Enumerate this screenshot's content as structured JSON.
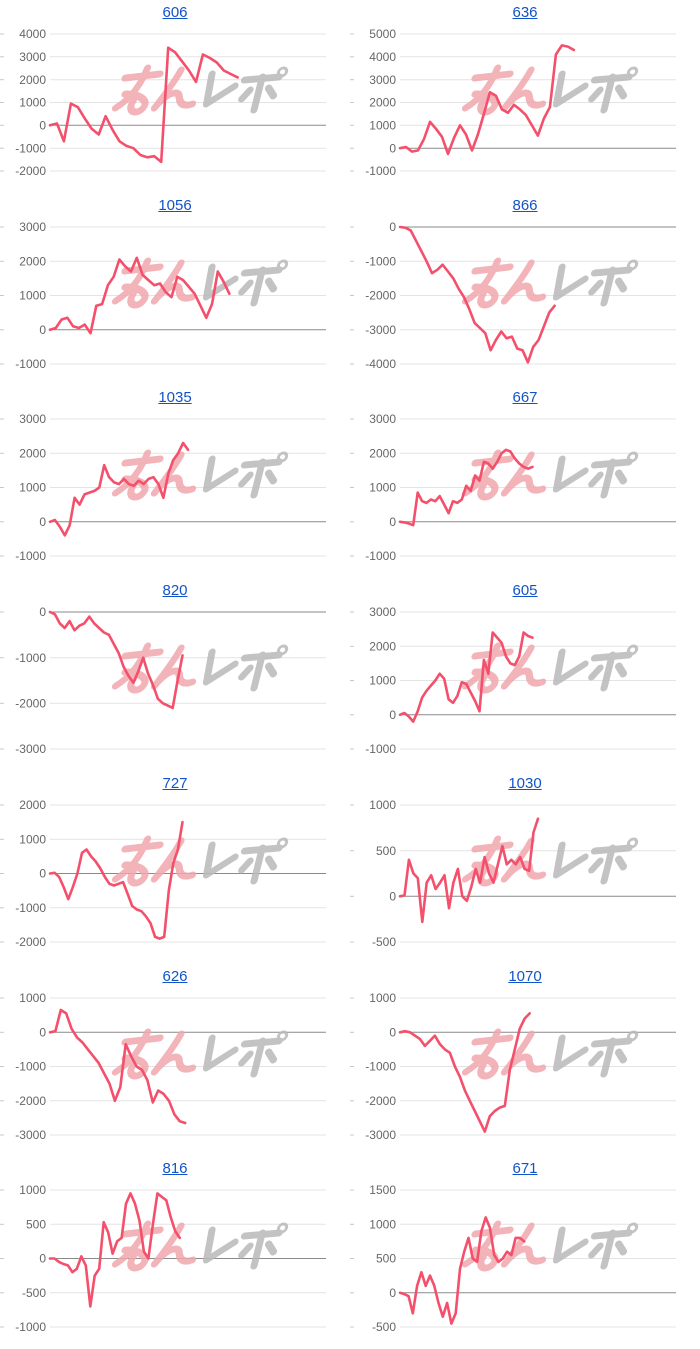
{
  "page": {
    "background": "#ffffff"
  },
  "colors": {
    "line": "#f4506c",
    "title_link": "#1254c8",
    "grid": "#e4e4e4",
    "zero_line": "#8a8a8a",
    "axis_label": "#666666",
    "edge_tick": "#c8c8c8",
    "watermark_pink": "#f0a7ad",
    "watermark_gray": "#b9b9b9"
  },
  "watermark": {
    "text_pink": "みん",
    "text_gray": "レポ"
  },
  "chart_data": [
    {
      "type": "line",
      "title": "606",
      "xlabel": "",
      "ylabel": "",
      "grid": true,
      "legend": null,
      "ylim": [
        -2000,
        4000
      ],
      "ytick_step": 1000,
      "x_extent_fraction": 0.68,
      "values": [
        0,
        80,
        -700,
        950,
        800,
        300,
        -150,
        -400,
        400,
        -200,
        -700,
        -900,
        -1000,
        -1300,
        -1400,
        -1350,
        -1600,
        3400,
        3200,
        2800,
        2400,
        1900,
        3100,
        2950,
        2750,
        2400,
        2250,
        2100
      ]
    },
    {
      "type": "line",
      "title": "636",
      "xlabel": "",
      "ylabel": "",
      "grid": true,
      "legend": null,
      "ylim": [
        -1000,
        5000
      ],
      "ytick_step": 1000,
      "x_extent_fraction": 0.63,
      "values": [
        0,
        50,
        -150,
        -100,
        400,
        1150,
        850,
        500,
        -250,
        450,
        1000,
        600,
        -100,
        600,
        1500,
        2450,
        2300,
        1700,
        1550,
        1900,
        1700,
        1450,
        1000,
        550,
        1300,
        1800,
        4100,
        4500,
        4450,
        4300
      ]
    },
    {
      "type": "line",
      "title": "1056",
      "xlabel": "",
      "ylabel": "",
      "grid": true,
      "legend": null,
      "ylim": [
        -1000,
        3000
      ],
      "ytick_step": 1000,
      "x_extent_fraction": 0.65,
      "values": [
        0,
        50,
        300,
        350,
        100,
        50,
        150,
        -100,
        700,
        750,
        1300,
        1550,
        2050,
        1850,
        1700,
        2100,
        1600,
        1450,
        1300,
        1350,
        1100,
        950,
        1550,
        1450,
        1250,
        1050,
        700,
        350,
        750,
        1700,
        1400,
        1050
      ]
    },
    {
      "type": "line",
      "title": "866",
      "xlabel": "",
      "ylabel": "",
      "grid": true,
      "legend": null,
      "ylim": [
        -4000,
        0
      ],
      "ytick_step": 1000,
      "x_extent_fraction": 0.56,
      "values": [
        0,
        -20,
        -100,
        -400,
        -700,
        -1000,
        -1350,
        -1250,
        -1100,
        -1300,
        -1500,
        -1800,
        -2050,
        -2400,
        -2800,
        -2950,
        -3100,
        -3600,
        -3300,
        -3050,
        -3250,
        -3200,
        -3550,
        -3600,
        -3950,
        -3500,
        -3300,
        -2900,
        -2500,
        -2300
      ]
    },
    {
      "type": "line",
      "title": "1035",
      "xlabel": "",
      "ylabel": "",
      "grid": true,
      "legend": null,
      "ylim": [
        -1000,
        3000
      ],
      "ytick_step": 1000,
      "x_extent_fraction": 0.5,
      "values": [
        0,
        50,
        -150,
        -400,
        -100,
        700,
        500,
        800,
        850,
        900,
        1000,
        1650,
        1300,
        1150,
        1100,
        1250,
        1100,
        1050,
        1200,
        1100,
        1250,
        1300,
        1100,
        700,
        1400,
        1800,
        2000,
        2300,
        2100
      ]
    },
    {
      "type": "line",
      "title": "667",
      "xlabel": "",
      "ylabel": "",
      "grid": true,
      "legend": null,
      "ylim": [
        -1000,
        3000
      ],
      "ytick_step": 1000,
      "x_extent_fraction": 0.48,
      "values": [
        0,
        -20,
        -50,
        -100,
        850,
        600,
        550,
        650,
        600,
        750,
        500,
        250,
        600,
        550,
        650,
        1050,
        900,
        1350,
        1200,
        1750,
        1700,
        1550,
        1750,
        2000,
        2100,
        2050,
        1850,
        1700,
        1600,
        1550,
        1600
      ]
    },
    {
      "type": "line",
      "title": "820",
      "xlabel": "",
      "ylabel": "",
      "grid": true,
      "legend": null,
      "ylim": [
        -3000,
        0
      ],
      "ytick_step": 1000,
      "x_extent_fraction": 0.48,
      "values": [
        0,
        -50,
        -250,
        -350,
        -200,
        -400,
        -300,
        -250,
        -100,
        -250,
        -350,
        -450,
        -500,
        -700,
        -900,
        -1200,
        -1400,
        -1550,
        -1300,
        -1000,
        -1350,
        -1600,
        -1900,
        -2000,
        -2050,
        -2100,
        -1500,
        -950
      ]
    },
    {
      "type": "line",
      "title": "605",
      "xlabel": "",
      "ylabel": "",
      "grid": true,
      "legend": null,
      "ylim": [
        -1000,
        3000
      ],
      "ytick_step": 1000,
      "x_extent_fraction": 0.48,
      "values": [
        0,
        50,
        -50,
        -200,
        100,
        500,
        700,
        850,
        1000,
        1200,
        1050,
        450,
        350,
        550,
        950,
        900,
        650,
        400,
        100,
        1600,
        1200,
        2400,
        2250,
        2100,
        1700,
        1500,
        1450,
        1700,
        2400,
        2300,
        2250
      ]
    },
    {
      "type": "line",
      "title": "727",
      "xlabel": "",
      "ylabel": "",
      "grid": true,
      "legend": null,
      "ylim": [
        -2000,
        2000
      ],
      "ytick_step": 1000,
      "x_extent_fraction": 0.48,
      "values": [
        0,
        20,
        -100,
        -400,
        -750,
        -400,
        0,
        600,
        700,
        500,
        350,
        150,
        -100,
        -300,
        -350,
        -300,
        -250,
        -600,
        -950,
        -1050,
        -1100,
        -1250,
        -1450,
        -1850,
        -1900,
        -1850,
        -500,
        300,
        700,
        1500
      ]
    },
    {
      "type": "line",
      "title": "1030",
      "xlabel": "",
      "ylabel": "",
      "grid": true,
      "legend": null,
      "ylim": [
        -500,
        1000
      ],
      "ytick_step": 500,
      "x_extent_fraction": 0.5,
      "values": [
        0,
        10,
        400,
        250,
        200,
        -280,
        150,
        230,
        80,
        150,
        230,
        -130,
        150,
        300,
        0,
        -50,
        100,
        300,
        150,
        430,
        250,
        150,
        350,
        550,
        350,
        400,
        350,
        430,
        300,
        280,
        700,
        850
      ]
    },
    {
      "type": "line",
      "title": "626",
      "xlabel": "",
      "ylabel": "",
      "grid": true,
      "legend": null,
      "ylim": [
        -3000,
        1000
      ],
      "ytick_step": 1000,
      "x_extent_fraction": 0.49,
      "values": [
        0,
        30,
        650,
        550,
        100,
        -150,
        -300,
        -500,
        -700,
        -900,
        -1200,
        -1500,
        -2000,
        -1600,
        -350,
        -700,
        -1000,
        -1100,
        -1400,
        -2050,
        -1700,
        -1800,
        -2000,
        -2400,
        -2600,
        -2650
      ]
    },
    {
      "type": "line",
      "title": "1070",
      "xlabel": "",
      "ylabel": "",
      "grid": true,
      "legend": null,
      "ylim": [
        -3000,
        1000
      ],
      "ytick_step": 1000,
      "x_extent_fraction": 0.47,
      "values": [
        0,
        30,
        0,
        -100,
        -200,
        -400,
        -250,
        -100,
        -350,
        -500,
        -600,
        -1000,
        -1300,
        -1700,
        -2000,
        -2300,
        -2600,
        -2900,
        -2450,
        -2300,
        -2200,
        -2150,
        -1100,
        -500,
        100,
        400,
        550
      ]
    },
    {
      "type": "line",
      "title": "816",
      "xlabel": "",
      "ylabel": "",
      "grid": true,
      "legend": null,
      "ylim": [
        -1000,
        1000
      ],
      "ytick_step": 500,
      "x_extent_fraction": 0.47,
      "values": [
        0,
        0,
        -50,
        -80,
        -100,
        -200,
        -150,
        30,
        -100,
        -700,
        -250,
        -150,
        530,
        380,
        70,
        250,
        300,
        800,
        950,
        800,
        550,
        100,
        0,
        500,
        950,
        900,
        850,
        600,
        400,
        300
      ]
    },
    {
      "type": "line",
      "title": "671",
      "xlabel": "",
      "ylabel": "",
      "grid": true,
      "legend": null,
      "ylim": [
        -500,
        1500
      ],
      "ytick_step": 500,
      "x_extent_fraction": 0.45,
      "values": [
        0,
        -20,
        -50,
        -300,
        100,
        300,
        100,
        250,
        100,
        -150,
        -350,
        -150,
        -450,
        -300,
        350,
        600,
        800,
        500,
        450,
        900,
        1100,
        950,
        550,
        450,
        500,
        600,
        550,
        800,
        800,
        750
      ]
    }
  ]
}
